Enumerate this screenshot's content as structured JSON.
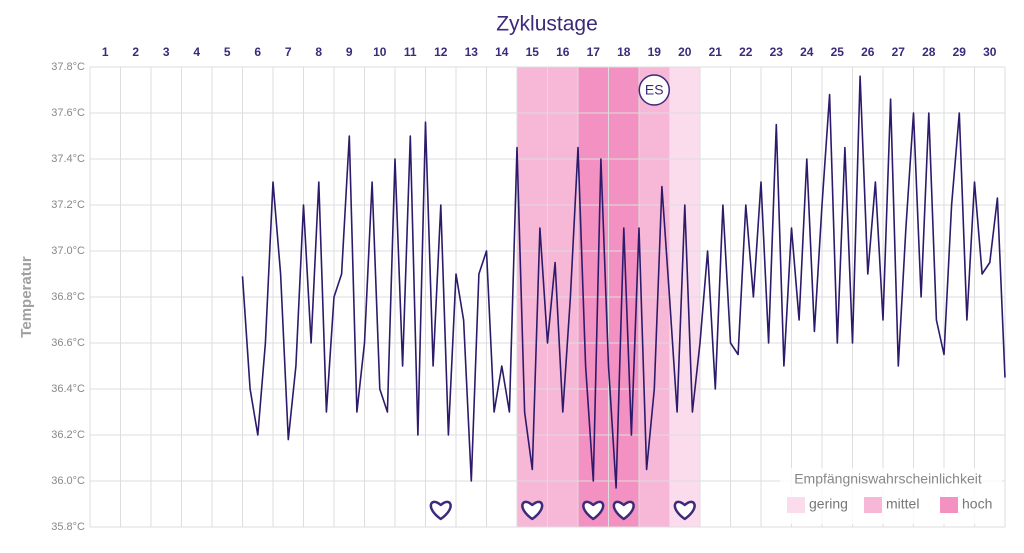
{
  "chart_data": {
    "type": "line",
    "title": "Zyklustage",
    "ylabel": "Temperatur",
    "xlim": [
      0.5,
      30.5
    ],
    "xticks": [
      1,
      2,
      3,
      4,
      5,
      6,
      7,
      8,
      9,
      10,
      11,
      12,
      13,
      14,
      15,
      16,
      17,
      18,
      19,
      20,
      21,
      22,
      23,
      24,
      25,
      26,
      27,
      28,
      29,
      30
    ],
    "ylim": [
      35.8,
      37.8
    ],
    "yticks": [
      {
        "value": 35.8,
        "label": "35.8°C"
      },
      {
        "value": 36.0,
        "label": "36.0°C"
      },
      {
        "value": 36.2,
        "label": "36.2°C"
      },
      {
        "value": 36.4,
        "label": "36.4°C"
      },
      {
        "value": 36.6,
        "label": "36.6°C"
      },
      {
        "value": 36.8,
        "label": "36.8°C"
      },
      {
        "value": 37.0,
        "label": "37.0°C"
      },
      {
        "value": 37.2,
        "label": "37.2°C"
      },
      {
        "value": 37.4,
        "label": "37.4°C"
      },
      {
        "value": 37.6,
        "label": "37.6°C"
      },
      {
        "value": 37.8,
        "label": "37.8°C"
      }
    ],
    "grid": true,
    "color": "#2e1a6b",
    "x": [
      5.5,
      5.75,
      6,
      6.25,
      6.5,
      6.75,
      7,
      7.25,
      7.5,
      7.75,
      8,
      8.25,
      8.5,
      8.75,
      9,
      9.25,
      9.5,
      9.75,
      10,
      10.25,
      10.5,
      10.75,
      11,
      11.25,
      11.5,
      11.75,
      12,
      12.25,
      12.5,
      12.75,
      13,
      13.25,
      13.5,
      13.75,
      14,
      14.25,
      14.5,
      14.75,
      15,
      15.25,
      15.5,
      15.75,
      16,
      16.25,
      16.5,
      16.75,
      17,
      17.25,
      17.5,
      17.75,
      18,
      18.25,
      18.5,
      18.75,
      19,
      19.25,
      19.5,
      19.75,
      20,
      20.25,
      20.5,
      20.75,
      21,
      21.25,
      21.5,
      21.75,
      22,
      22.25,
      22.5,
      22.75,
      23,
      23.25,
      23.5,
      23.75,
      24,
      24.25,
      24.5,
      24.75,
      25,
      25.25,
      25.5,
      25.75,
      26,
      26.25,
      26.5,
      26.75,
      27,
      27.25,
      27.5,
      27.75,
      28,
      28.25,
      28.5,
      28.75,
      29,
      29.25,
      29.5,
      29.75,
      30,
      30.25,
      30.5
    ],
    "values": [
      36.89,
      36.4,
      36.2,
      36.6,
      37.3,
      36.9,
      36.18,
      36.5,
      37.2,
      36.6,
      37.3,
      36.3,
      36.8,
      36.9,
      37.5,
      36.3,
      36.6,
      37.3,
      36.4,
      36.3,
      37.4,
      36.5,
      37.5,
      36.2,
      37.56,
      36.5,
      37.2,
      36.2,
      36.9,
      36.7,
      36.0,
      36.9,
      37.0,
      36.3,
      36.5,
      36.3,
      37.45,
      36.3,
      36.05,
      37.1,
      36.6,
      36.95,
      36.3,
      36.8,
      37.45,
      36.5,
      36.0,
      37.4,
      36.5,
      35.97,
      37.1,
      36.2,
      37.1,
      36.05,
      36.4,
      37.28,
      36.8,
      36.3,
      37.2,
      36.3,
      36.6,
      37.0,
      36.4,
      37.2,
      36.6,
      36.55,
      37.2,
      36.8,
      37.3,
      36.6,
      37.55,
      36.5,
      37.1,
      36.7,
      37.4,
      36.65,
      37.2,
      37.68,
      36.6,
      37.45,
      36.6,
      37.76,
      36.9,
      37.3,
      36.7,
      37.66,
      36.5,
      37.1,
      37.6,
      36.8,
      37.6,
      36.7,
      36.55,
      37.2,
      37.6,
      36.7,
      37.3,
      36.9,
      36.95,
      37.23,
      36.45
    ],
    "bands": [
      {
        "day": 15,
        "level": "mittel"
      },
      {
        "day": 16,
        "level": "mittel"
      },
      {
        "day": 17,
        "level": "hoch"
      },
      {
        "day": 18,
        "level": "hoch"
      },
      {
        "day": 19,
        "level": "mittel"
      },
      {
        "day": 20,
        "level": "gering"
      }
    ],
    "hearts": [
      12,
      15,
      17,
      18,
      20
    ],
    "marker": {
      "day": 19,
      "label": "ES"
    },
    "legend": {
      "title": "Empfängniswahrscheinlichkeit",
      "corner": "bottom-right",
      "items": [
        {
          "name": "gering",
          "color": "#fbdcec"
        },
        {
          "name": "mittel",
          "color": "#f7b8d7"
        },
        {
          "name": "hoch",
          "color": "#f291c2"
        }
      ]
    }
  }
}
